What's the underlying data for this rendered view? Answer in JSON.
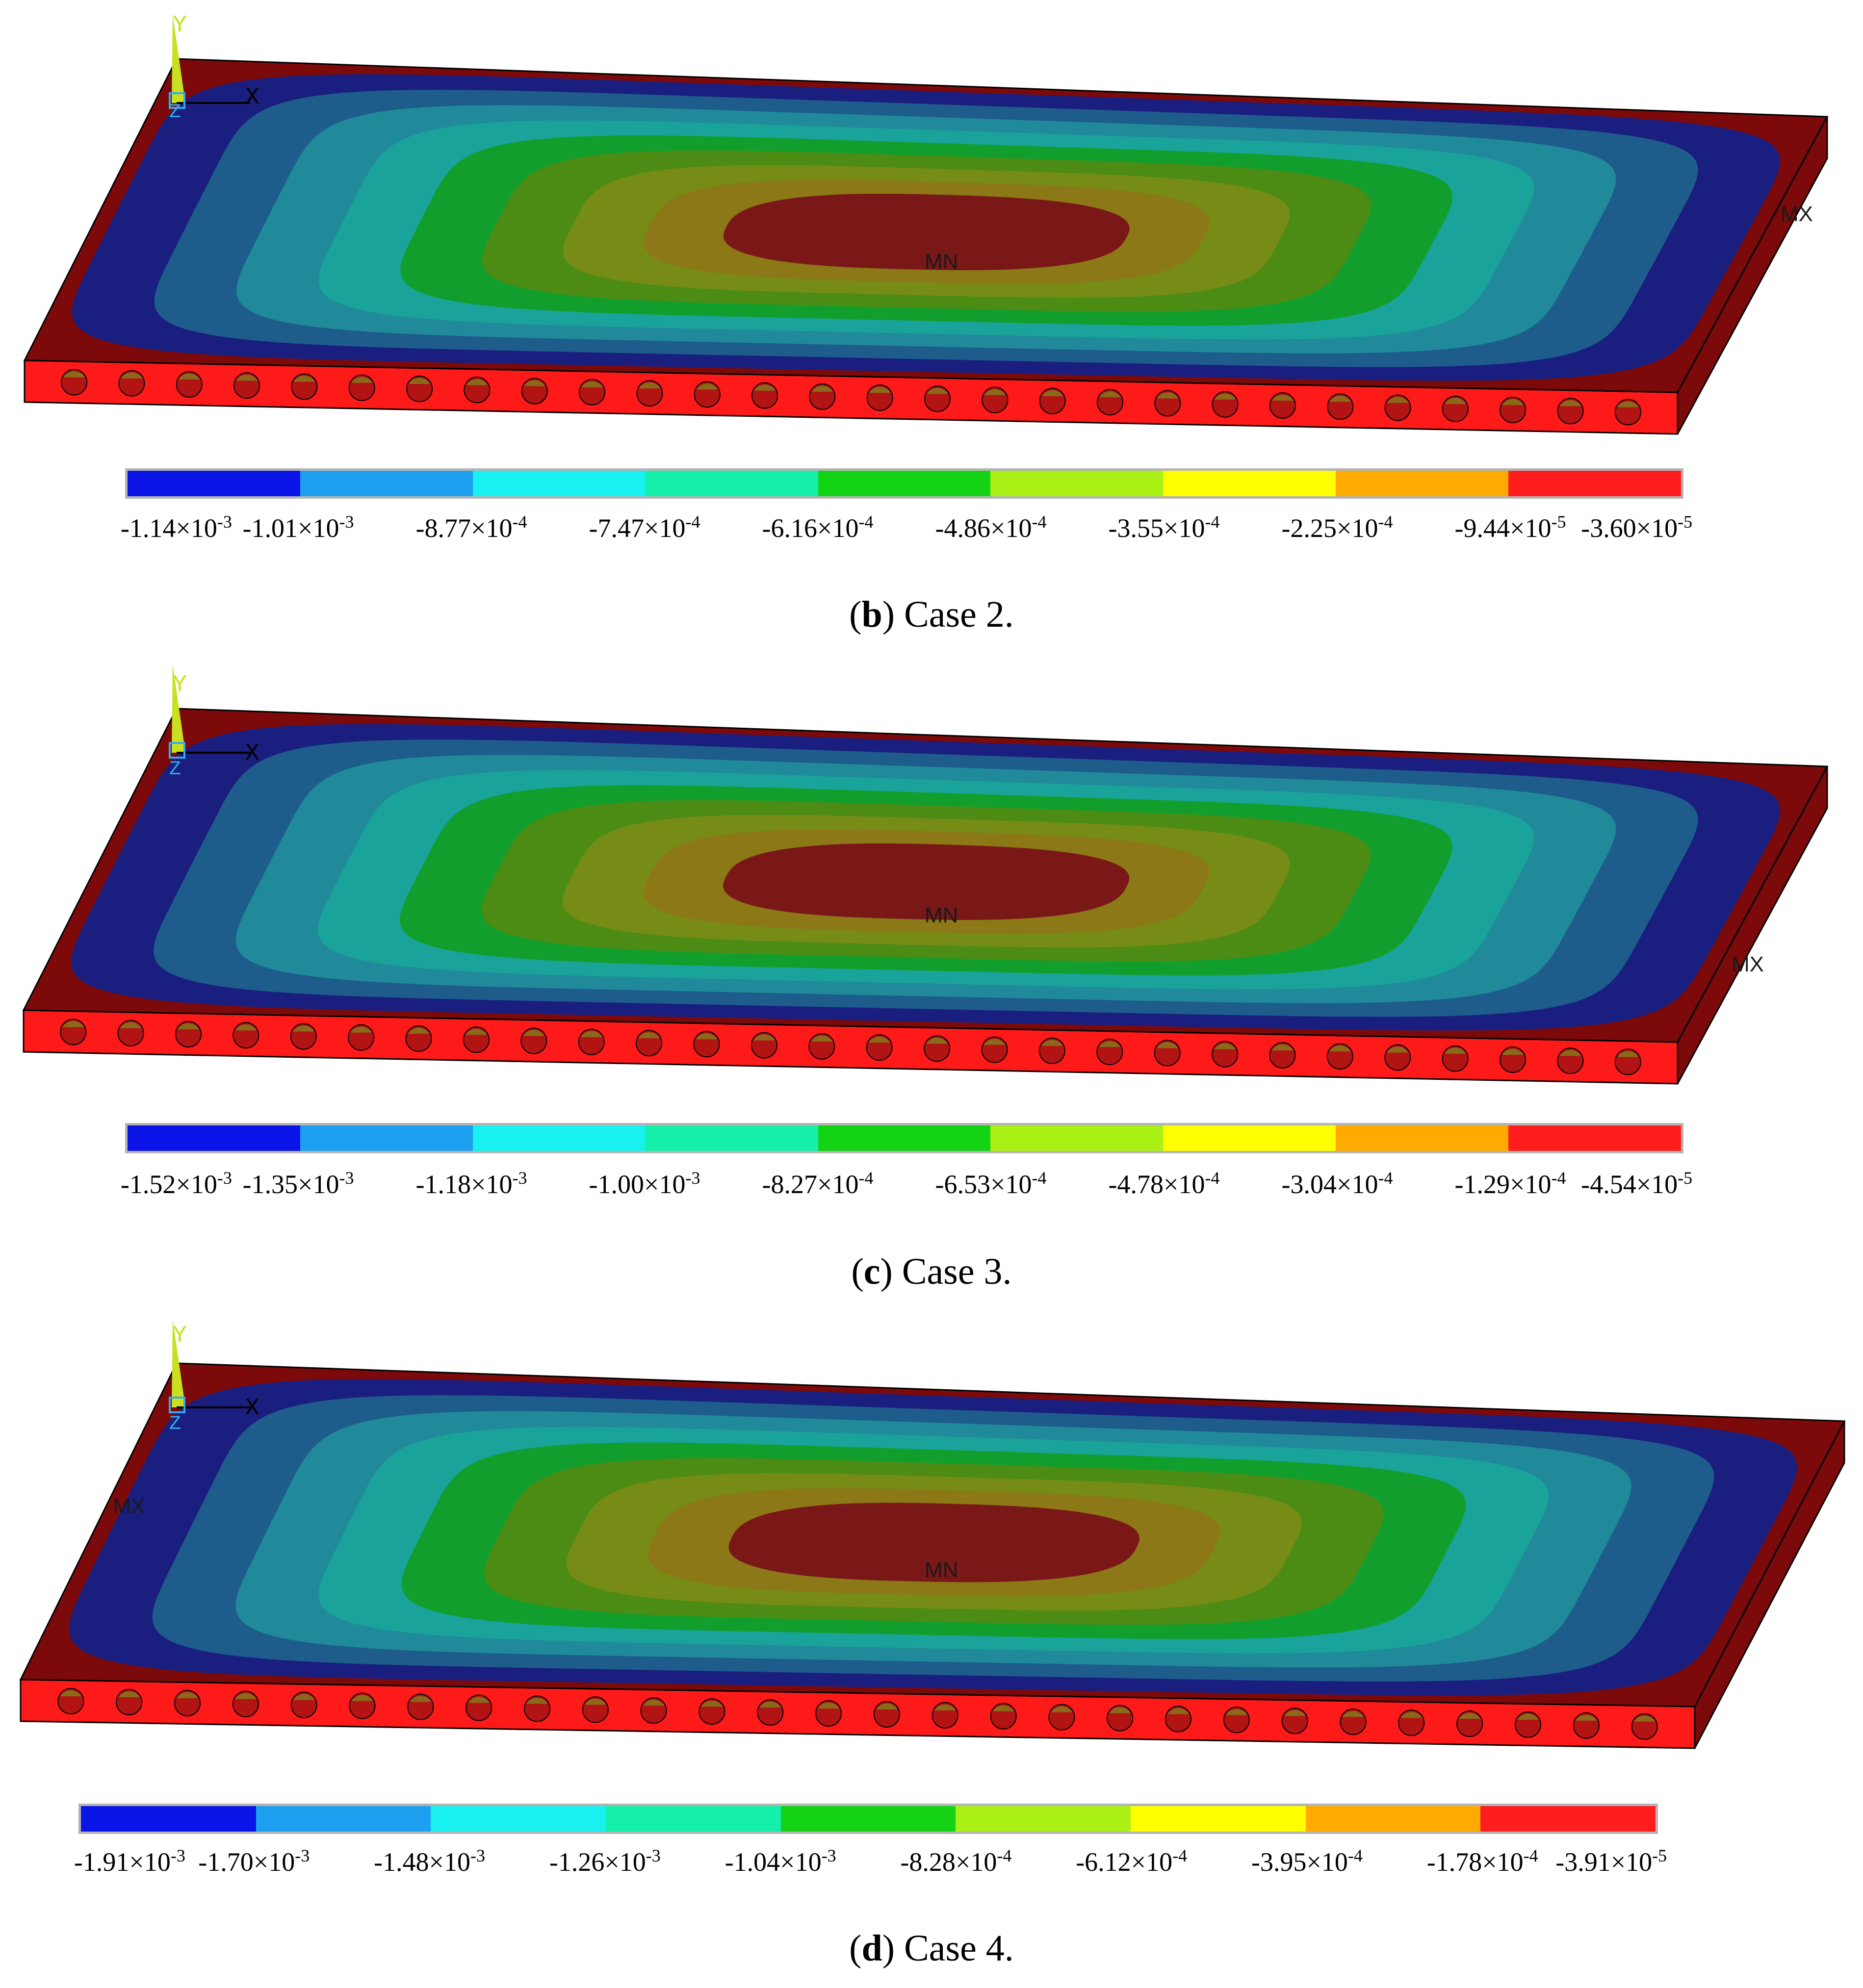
{
  "legend_colors": [
    "#0a14e6",
    "#1ea0f0",
    "#19f0f0",
    "#14f0aa",
    "#14d214",
    "#aaf014",
    "#ffff00",
    "#ffaa00",
    "#ff1e1e"
  ],
  "plate_colors": {
    "field": [
      "#1a1e7e",
      "#1e5c8c",
      "#208a9a",
      "#1aa39a",
      "#129e2c",
      "#4c8c14",
      "#768c16",
      "#8c7816",
      "#7a1818"
    ],
    "top_edge": "#7c0a0a",
    "side": "#ff1a1a",
    "side_dark": "#b00c0c",
    "hole": "#b21414",
    "hole_shade": "#8a6a1a"
  },
  "axis": {
    "y": "Y",
    "x": "X",
    "z": "Z"
  },
  "min_marker": "MN",
  "max_marker": "MX",
  "panels": [
    {
      "id": "b",
      "case": "Case 2.",
      "legend": [
        "-1.14",
        "-1.01",
        "-8.77",
        "-7.47",
        "-6.16",
        "-4.86",
        "-3.55",
        "-2.25",
        "-9.44",
        "-3.60"
      ],
      "legend_exp": [
        "-3",
        "-3",
        "-4",
        "-4",
        "-4",
        "-4",
        "-4",
        "-4",
        "-5",
        "-5"
      ]
    },
    {
      "id": "c",
      "case": "Case 3.",
      "legend": [
        "-1.52",
        "-1.35",
        "-1.18",
        "-1.00",
        "-8.27",
        "-6.53",
        "-4.78",
        "-3.04",
        "-1.29",
        "-4.54"
      ],
      "legend_exp": [
        "-3",
        "-3",
        "-3",
        "-3",
        "-4",
        "-4",
        "-4",
        "-4",
        "-4",
        "-5"
      ]
    },
    {
      "id": "d",
      "case": "Case 4.",
      "legend": [
        "-1.91",
        "-1.70",
        "-1.48",
        "-1.26",
        "-1.04",
        "-8.28",
        "-6.12",
        "-3.95",
        "-1.78",
        "-3.91"
      ],
      "legend_exp": [
        "-3",
        "-3",
        "-3",
        "-3",
        "-3",
        "-4",
        "-4",
        "-4",
        "-4",
        "-5"
      ]
    }
  ]
}
